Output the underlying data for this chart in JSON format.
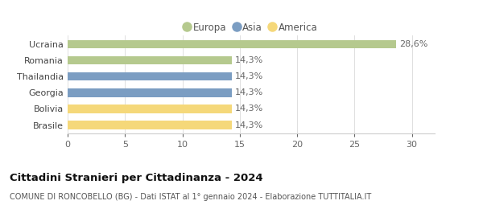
{
  "categories": [
    "Ucraina",
    "Romania",
    "Thailandia",
    "Georgia",
    "Bolivia",
    "Brasile"
  ],
  "values": [
    28.6,
    14.3,
    14.3,
    14.3,
    14.3,
    14.3
  ],
  "labels": [
    "28,6%",
    "14,3%",
    "14,3%",
    "14,3%",
    "14,3%",
    "14,3%"
  ],
  "bar_colors": [
    "#b5c98e",
    "#b5c98e",
    "#7b9dc2",
    "#7b9dc2",
    "#f5d87a",
    "#f5d87a"
  ],
  "legend_items": [
    {
      "label": "Europa",
      "color": "#b5c98e"
    },
    {
      "label": "Asia",
      "color": "#7b9dc2"
    },
    {
      "label": "America",
      "color": "#f5d87a"
    }
  ],
  "xlim": [
    0,
    32
  ],
  "xticks": [
    0,
    5,
    10,
    15,
    20,
    25,
    30
  ],
  "title_bold": "Cittadini Stranieri per Cittadinanza - 2024",
  "subtitle": "COMUNE DI RONCOBELLO (BG) - Dati ISTAT al 1° gennaio 2024 - Elaborazione TUTTITALIA.IT",
  "background_color": "#ffffff",
  "bar_height": 0.52,
  "label_fontsize": 8,
  "tick_fontsize": 8,
  "category_fontsize": 8,
  "title_fontsize": 9.5,
  "subtitle_fontsize": 7,
  "legend_fontsize": 8.5
}
